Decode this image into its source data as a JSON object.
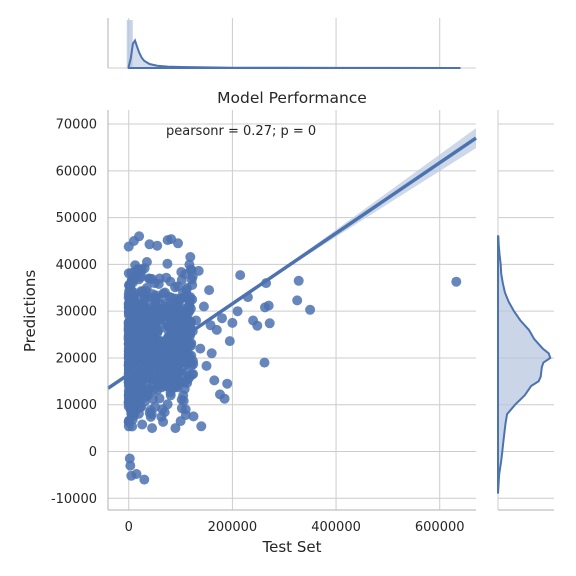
{
  "chart_data": {
    "type": "scatter",
    "kind": "jointplot-regression",
    "title": "Model Performance",
    "xlabel": "Test Set",
    "ylabel": "Predictions",
    "annotation": "pearsonr = 0.27; p = 0",
    "xlim": [
      -40000,
      670000
    ],
    "ylim": [
      -12500,
      73000
    ],
    "xticks": [
      0,
      200000,
      400000,
      600000
    ],
    "xtick_labels": [
      "0",
      "200000",
      "400000",
      "600000"
    ],
    "yticks": [
      -10000,
      0,
      10000,
      20000,
      30000,
      40000,
      50000,
      60000,
      70000
    ],
    "ytick_labels": [
      "-10000",
      "0",
      "10000",
      "20000",
      "30000",
      "40000",
      "50000",
      "60000",
      "70000"
    ],
    "grid": true,
    "colors": {
      "points": "#4c72b0",
      "line": "#4c72b0",
      "band": "#b8c7e0",
      "grid": "#cccccc",
      "background": "#ffffff"
    },
    "regression_line": {
      "x": [
        -40000,
        670000
      ],
      "y": [
        13500,
        67000
      ]
    },
    "points": [
      {
        "x": 632000,
        "y": 36300
      },
      {
        "x": 350000,
        "y": 30300
      },
      {
        "x": 328000,
        "y": 36500
      },
      {
        "x": 325000,
        "y": 32300
      },
      {
        "x": 272000,
        "y": 27400
      },
      {
        "x": 270000,
        "y": 31200
      },
      {
        "x": 265000,
        "y": 36000
      },
      {
        "x": 263000,
        "y": 30800
      },
      {
        "x": 262000,
        "y": 19000
      },
      {
        "x": 248000,
        "y": 26900
      },
      {
        "x": 215000,
        "y": 37700
      },
      {
        "x": 195000,
        "y": 23600
      },
      {
        "x": 190000,
        "y": 14500
      },
      {
        "x": 185000,
        "y": 11300
      },
      {
        "x": 176000,
        "y": 12200
      },
      {
        "x": 165000,
        "y": 15200
      },
      {
        "x": 150000,
        "y": 18300
      },
      {
        "x": 140000,
        "y": 5400
      },
      {
        "x": 135000,
        "y": 38600
      },
      {
        "x": 120000,
        "y": 38900
      },
      {
        "x": 95000,
        "y": 44500
      },
      {
        "x": 82000,
        "y": 45400
      },
      {
        "x": 75000,
        "y": 45200
      },
      {
        "x": 55000,
        "y": 44000
      },
      {
        "x": 40000,
        "y": 44300
      },
      {
        "x": 20000,
        "y": 46000
      },
      {
        "x": 10000,
        "y": 45000
      },
      {
        "x": 0,
        "y": 43800
      },
      {
        "x": 30000,
        "y": -6000
      },
      {
        "x": 15000,
        "y": -4800
      },
      {
        "x": 5000,
        "y": -5200
      },
      {
        "x": 3000,
        "y": -3000
      },
      {
        "x": 2000,
        "y": -1500
      },
      {
        "x": 110000,
        "y": 9000
      },
      {
        "x": 125000,
        "y": 7500
      },
      {
        "x": 100000,
        "y": 6500
      },
      {
        "x": 90000,
        "y": 5000
      },
      {
        "x": 105000,
        "y": 12000
      },
      {
        "x": 160000,
        "y": 21000
      },
      {
        "x": 170000,
        "y": 26000
      },
      {
        "x": 180000,
        "y": 28500
      },
      {
        "x": 200000,
        "y": 27500
      },
      {
        "x": 210000,
        "y": 30000
      },
      {
        "x": 230000,
        "y": 33000
      },
      {
        "x": 240000,
        "y": 28000
      },
      {
        "x": 155000,
        "y": 34500
      },
      {
        "x": 145000,
        "y": 31000
      },
      {
        "x": 130000,
        "y": 28000
      },
      {
        "x": 115000,
        "y": 25000
      },
      {
        "x": 80000,
        "y": 20000
      },
      {
        "x": 60000,
        "y": 17000
      },
      {
        "x": 50000,
        "y": 36000
      },
      {
        "x": 35000,
        "y": 40500
      },
      {
        "x": 25000,
        "y": 39000
      },
      {
        "x": 45000,
        "y": 5000
      },
      {
        "x": 65000,
        "y": 9000
      },
      {
        "x": 85000,
        "y": 30000
      },
      {
        "x": 70000,
        "y": 34000
      },
      {
        "x": 138000,
        "y": 22000
      },
      {
        "x": 158000,
        "y": 27000
      }
    ],
    "dense_cluster": {
      "x_range": [
        0,
        125000
      ],
      "y_center": 21000,
      "y_spread": 14000,
      "description": "dense mass of overlapping points near x = 0"
    },
    "marginal_x": {
      "x": [
        0,
        4000,
        8000,
        12000,
        16000,
        20000,
        25000,
        30000,
        40000,
        55000,
        75000,
        100000,
        150000,
        200000,
        300000,
        400000,
        500000,
        640000
      ],
      "density": [
        0.05,
        0.35,
        0.85,
        0.96,
        0.75,
        0.55,
        0.36,
        0.25,
        0.14,
        0.08,
        0.05,
        0.035,
        0.02,
        0.012,
        0.006,
        0.003,
        0.002,
        0.001
      ]
    },
    "marginal_y": {
      "y": [
        -9000,
        -5000,
        -2000,
        0,
        2000,
        4000,
        6000,
        8000,
        10000,
        12000,
        14000,
        15000,
        16000,
        18000,
        19000,
        20000,
        21000,
        22000,
        24000,
        26000,
        28000,
        30000,
        32000,
        34000,
        36000,
        38000,
        40000,
        42000,
        44000,
        46000
      ],
      "density": [
        0.0,
        0.02,
        0.06,
        0.08,
        0.1,
        0.12,
        0.14,
        0.17,
        0.32,
        0.5,
        0.62,
        0.76,
        0.8,
        0.82,
        0.85,
        0.98,
        0.95,
        0.84,
        0.68,
        0.58,
        0.42,
        0.3,
        0.2,
        0.13,
        0.09,
        0.06,
        0.05,
        0.03,
        0.015,
        0.005
      ]
    }
  }
}
